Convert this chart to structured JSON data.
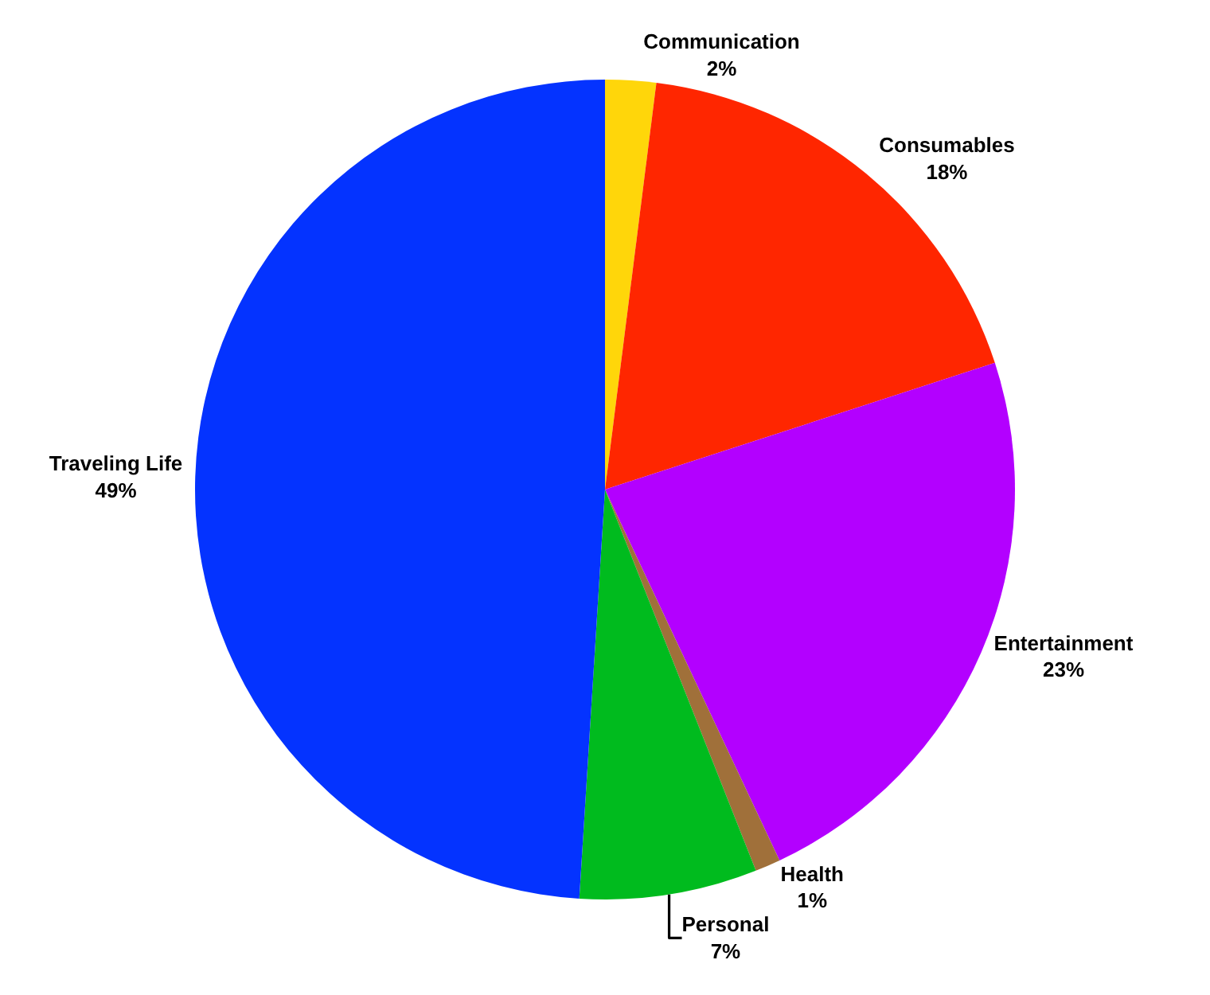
{
  "chart_data": {
    "type": "pie",
    "categories": [
      "Communication",
      "Consumables",
      "Entertainment",
      "Health",
      "Personal",
      "Traveling Life"
    ],
    "values": [
      2,
      18,
      23,
      1,
      7,
      49
    ],
    "value_labels": [
      "2%",
      "18%",
      "23%",
      "1%",
      "7%",
      "49%"
    ],
    "colors": [
      "#ffd60a",
      "#ff2600",
      "#b300ff",
      "#a0703a",
      "#00bb1e",
      "#0433ff"
    ],
    "legend": false
  }
}
